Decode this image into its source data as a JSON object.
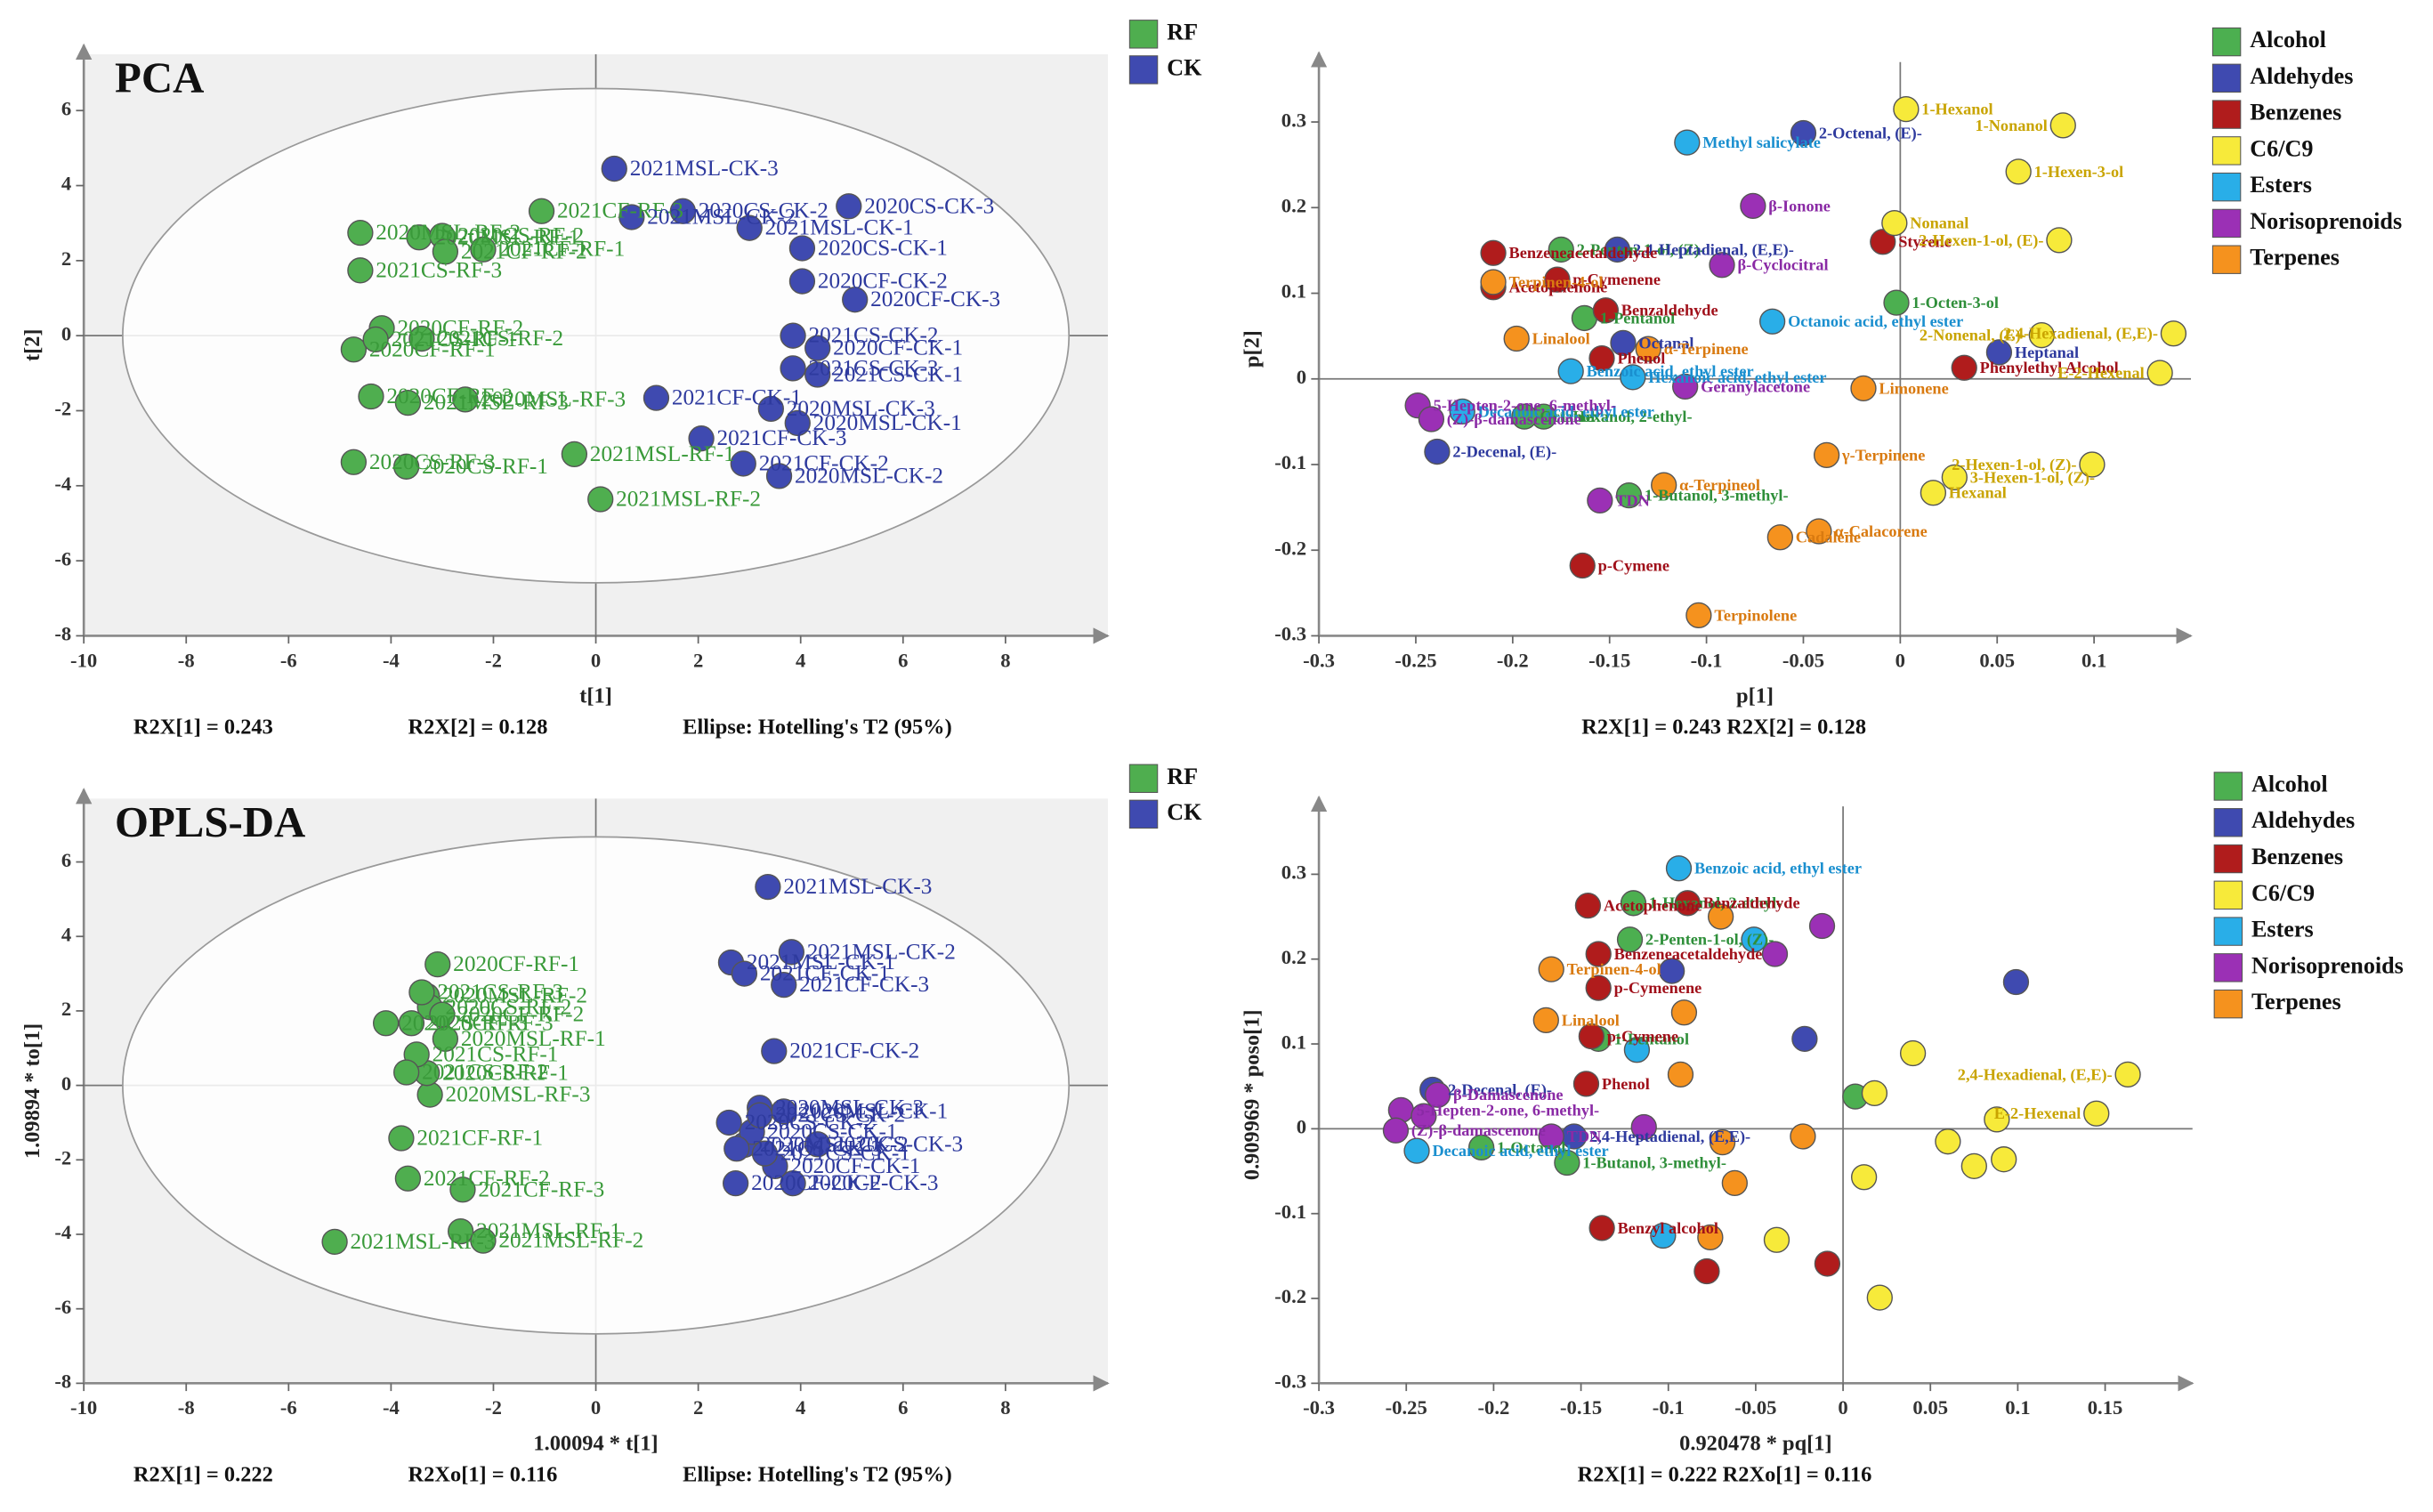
{
  "chart_data": [
    {
      "type": "scatter",
      "title": "PCA",
      "xlabel": "t[1]",
      "ylabel": "t[2]",
      "annotations": [
        "R2X[1] = 0.243",
        "R2X[2] = 0.128",
        "Ellipse: Hotelling's T2 (95%)"
      ],
      "ellipse": true,
      "legend": "outside-right",
      "xlim": [
        -10,
        10
      ],
      "ylim": [
        -8,
        7.5
      ],
      "xticks": [
        -10,
        -8,
        -6,
        -4,
        -2,
        0,
        2,
        4,
        6,
        8
      ],
      "yticks": [
        -8,
        -6,
        -4,
        -2,
        0,
        2,
        4,
        6
      ],
      "series": [
        {
          "name": "RF",
          "color": "#4fae4f",
          "label_color": "#3a9a3a",
          "labels": [
            "2020MSL-RF-1",
            "2020MSL-RF-2",
            "2020MSL-RF-3",
            "2020CS-RF-1",
            "2020CS-RF-2",
            "2020CS-RF-3",
            "2020CF-RF-1",
            "2020CF-RF-2",
            "2020CF-RF-3",
            "2021MSL-RF-1",
            "2021MSL-RF-2",
            "2021MSL-RF-3",
            "2021CS-RF-1",
            "2021CS-RF-2",
            "2021CS-RF-3",
            "2021CF-RF-1",
            "2021CF-RF-2",
            "2021CF-RF-3"
          ],
          "x": [
            -3.45,
            -4.6,
            -2.55,
            -3.7,
            -3.0,
            -4.73,
            -4.73,
            -4.18,
            -4.39,
            -0.42,
            0.09,
            -3.67,
            -4.3,
            -3.4,
            -4.6,
            -2.2,
            -2.94,
            -1.06
          ],
          "y": [
            2.62,
            2.74,
            -1.7,
            -3.49,
            2.66,
            -3.37,
            -0.37,
            0.2,
            -1.62,
            -3.16,
            -4.36,
            -1.79,
            -0.1,
            -0.08,
            1.74,
            2.3,
            2.24,
            3.32
          ]
        },
        {
          "name": "CK",
          "color": "#3f4ab0",
          "label_color": "#2e3a9e",
          "labels": [
            "2020MSL-CK-1",
            "2020MSL-CK-2",
            "2020MSL-CK-3",
            "2020CS-CK-1",
            "2020CS-CK-2",
            "2020CS-CK-3",
            "2020CF-CK-1",
            "2020CF-CK-2",
            "2020CF-CK-3",
            "2021MSL-CK-1",
            "2021MSL-CK-2",
            "2021MSL-CK-3",
            "2021CS-CK-1",
            "2021CS-CK-2",
            "2021CS-CK-3",
            "2021CF-CK-1",
            "2021CF-CK-2",
            "2021CF-CK-3"
          ],
          "x": [
            3.94,
            3.58,
            3.42,
            4.03,
            1.7,
            4.94,
            4.33,
            4.03,
            5.06,
            3.0,
            0.7,
            0.36,
            4.33,
            3.85,
            3.85,
            1.18,
            2.88,
            2.06
          ],
          "y": [
            -2.33,
            -3.74,
            -1.95,
            2.33,
            3.32,
            3.45,
            -0.33,
            1.45,
            0.96,
            2.87,
            3.16,
            4.45,
            -1.04,
            0,
            -0.87,
            -1.66,
            -3.41,
            -2.74
          ]
        }
      ]
    },
    {
      "type": "scatter",
      "xlabel": "p[1]",
      "ylabel": "p[2]",
      "annotations": [
        "R2X[1] = 0.243 R2X[2] = 0.128"
      ],
      "ellipse": false,
      "legend": "outside-right",
      "xlim": [
        -0.3,
        0.15
      ],
      "ylim": [
        -0.3,
        0.37
      ],
      "xticks": [
        -0.3,
        -0.25,
        -0.2,
        -0.15,
        -0.1,
        -0.05,
        0,
        0.05,
        0.1
      ],
      "yticks": [
        -0.3,
        -0.2,
        -0.1,
        0,
        0.1,
        0.2,
        0.3
      ],
      "series": [
        {
          "name": "Alcohol",
          "color": "#4caf50",
          "label_color": "#2f8f3a",
          "labels": [
            "2-Penten-1-ol, (Z)-",
            "1-Pentanol",
            "1-Octen-3-ol",
            "1-Butanol, 3-methyl-",
            "1-Hexanol, 2-ethyl-",
            "Octanol"
          ],
          "x": [
            -0.175,
            -0.163,
            -0.002,
            -0.14,
            -0.184,
            -0.194
          ],
          "y": [
            0.151,
            0.071,
            0.089,
            -0.136,
            -0.044,
            -0.044
          ]
        },
        {
          "name": "Aldehydes",
          "color": "#3f4ab0",
          "label_color": "#2e3a9e",
          "labels": [
            "2-Octenal, (E)-",
            "2,4-Heptadienal, (E,E)-",
            "Octanal",
            "Heptanal",
            "2-Decenal, (E)-"
          ],
          "x": [
            -0.05,
            -0.146,
            -0.143,
            0.051,
            -0.239
          ],
          "y": [
            0.287,
            0.151,
            0.042,
            0.031,
            -0.085
          ]
        },
        {
          "name": "Benzenes",
          "color": "#b01c1c",
          "label_color": "#a0101a",
          "labels": [
            "Benzeneacetaldehyde",
            "Acetophenone",
            "p-Cymenene",
            "Benzaldehyde",
            "Styrene",
            "Phenol",
            "Phenylethyl Alcohol",
            "p-Cymene"
          ],
          "x": [
            -0.21,
            -0.21,
            -0.177,
            -0.152,
            -0.009,
            -0.154,
            0.033,
            -0.164
          ],
          "y": [
            0.147,
            0.107,
            0.116,
            0.08,
            0.16,
            0.024,
            0.013,
            -0.218
          ]
        },
        {
          "name": "C6/C9",
          "color": "#f7ea3a",
          "label_color": "#c9a400",
          "labels": [
            "1-Hexanol",
            "1-Nonanol",
            "1-Hexen-3-ol",
            "Nonanal",
            "2-Hexen-1-ol, (E)-",
            "2-Nonenal, (E)-",
            "2,4-Hexadienal, (E,E)-",
            "E-2-Hexenal",
            "2-Hexen-1-ol, (Z)-",
            "3-Hexen-1-ol, (Z)-",
            "Hexanal"
          ],
          "x": [
            0.003,
            0.084,
            0.061,
            -0.003,
            0.082,
            0.073,
            0.141,
            0.134,
            0.099,
            0.028,
            0.017
          ],
          "y": [
            0.315,
            0.296,
            0.242,
            0.182,
            0.162,
            0.051,
            0.053,
            0.007,
            -0.1,
            -0.115,
            -0.133
          ]
        },
        {
          "name": "Esters",
          "color": "#29aee8",
          "label_color": "#1a8fcf",
          "labels": [
            "Methyl salicylate",
            "Octanoic acid, ethyl ester",
            "Benzoic acid, ethyl ester",
            "Decanoic acid, ethyl ester",
            "Hexanoic acid, ethyl ester"
          ],
          "x": [
            -0.11,
            -0.066,
            -0.17,
            -0.226,
            -0.138
          ],
          "y": [
            0.276,
            0.067,
            0.009,
            -0.038,
            0.002
          ]
        },
        {
          "name": "Norisoprenoids",
          "color": "#9b30b5",
          "label_color": "#8a2aa5",
          "labels": [
            "β-Ionone",
            "β-Cyclocitral",
            "Geranylacetone",
            "5-Hepten-2-one, 6-methyl-",
            "(Z)-β-damascenone",
            "TDN"
          ],
          "x": [
            -0.076,
            -0.092,
            -0.111,
            -0.249,
            -0.242,
            -0.155
          ],
          "y": [
            0.202,
            0.133,
            -0.009,
            -0.031,
            -0.047,
            -0.142
          ]
        },
        {
          "name": "Terpenes",
          "color": "#f5921e",
          "label_color": "#d97a10",
          "labels": [
            "Terpinen-4-ol",
            "Linalool",
            "α-Terpinene",
            "Limonene",
            "α-Terpineol",
            "γ-Terpinene",
            "Cadalene",
            "α-Calacorene",
            "Terpinolene"
          ],
          "x": [
            -0.21,
            -0.198,
            -0.13,
            -0.019,
            -0.122,
            -0.038,
            -0.062,
            -0.042,
            -0.104
          ],
          "y": [
            0.113,
            0.047,
            0.035,
            -0.011,
            -0.124,
            -0.089,
            -0.185,
            -0.178,
            -0.276
          ]
        }
      ]
    },
    {
      "type": "scatter",
      "title": "OPLS-DA",
      "xlabel": "1.00094 * t[1]",
      "ylabel": "1.09894 * to[1]",
      "annotations": [
        "R2X[1] = 0.222",
        "R2Xo[1] = 0.116",
        "Ellipse: Hotelling's T2 (95%)"
      ],
      "ellipse": true,
      "legend": "outside-right",
      "xlim": [
        -10,
        10
      ],
      "ylim": [
        -8,
        7.7
      ],
      "xticks": [
        -10,
        -8,
        -6,
        -4,
        -2,
        0,
        2,
        4,
        6,
        8
      ],
      "yticks": [
        -8,
        -6,
        -4,
        -2,
        0,
        2,
        4,
        6
      ],
      "series": [
        {
          "name": "RF",
          "color": "#4fae4f",
          "label_color": "#3a9a3a",
          "labels": [
            "2020MSL-RF-1",
            "2020MSL-RF-2",
            "2020MSL-RF-3",
            "2020CS-RF-1",
            "2020CS-RF-2",
            "2020CS-RF-3",
            "2020CF-RF-1",
            "2020CF-RF-2",
            "2020CF-RF-3",
            "2021MSL-RF-1",
            "2021MSL-RF-2",
            "2021MSL-RF-3",
            "2021CS-RF-1",
            "2021CS-RF-2",
            "2021CS-RF-3",
            "2021CF-RF-1",
            "2021CF-RF-2",
            "2021CF-RF-3"
          ],
          "x": [
            -2.94,
            -3.3,
            -3.24,
            -3.3,
            -3.24,
            -4.1,
            -3.09,
            -3.0,
            -3.6,
            -2.64,
            -2.2,
            -5.1,
            -3.5,
            -3.7,
            -3.4,
            -3.8,
            -3.67,
            -2.6
          ],
          "y": [
            1.25,
            2.4,
            -0.25,
            0.33,
            2.1,
            1.67,
            3.25,
            1.9,
            1.67,
            -3.92,
            -4.17,
            -4.2,
            0.83,
            0.35,
            2.5,
            -1.42,
            -2.5,
            -2.8
          ]
        },
        {
          "name": "CK",
          "color": "#3f4ab0",
          "label_color": "#2e3a9e",
          "labels": [
            "2020MSL-CK-1",
            "2020MSL-CK-2",
            "2020MSL-CK-3",
            "2020CS-CK-1",
            "2020CS-CK-2",
            "2020CS-CK-3",
            "2020CF-CK-1",
            "2020CF-CK-2",
            "2020CF-CK-3",
            "2021MSL-CK-1",
            "2021MSL-CK-2",
            "2021MSL-CK-3",
            "2021CS-CK-1",
            "2021CS-CK-2",
            "2021CS-CK-3",
            "2021CF-CK-1",
            "2021CF-CK-2",
            "2021CF-CK-3"
          ],
          "x": [
            3.67,
            2.9,
            3.2,
            3.05,
            2.6,
            4.33,
            3.5,
            2.73,
            3.85,
            2.64,
            3.82,
            3.36,
            3.3,
            3.2,
            2.75,
            2.9,
            3.48,
            3.67
          ],
          "y": [
            -0.7,
            -1.6,
            -0.6,
            -1.25,
            -1.0,
            -1.58,
            -2.17,
            -2.63,
            -2.63,
            3.3,
            3.58,
            5.33,
            -1.83,
            -0.8,
            -1.7,
            3.0,
            0.92,
            2.7
          ]
        }
      ]
    },
    {
      "type": "scatter",
      "xlabel": "0.920478 * pq[1]",
      "ylabel": "0.909969 * poso[1]",
      "annotations": [
        "R2X[1] = 0.222  R2Xo[1] = 0.116"
      ],
      "ellipse": false,
      "legend": "outside-right",
      "xlim": [
        -0.3,
        0.2
      ],
      "ylim": [
        -0.3,
        0.38
      ],
      "xticks": [
        -0.3,
        -0.25,
        -0.2,
        -0.15,
        -0.1,
        -0.05,
        0,
        0.05,
        0.1,
        0.15
      ],
      "yticks": [
        -0.3,
        -0.2,
        -0.1,
        0,
        0.1,
        0.2,
        0.3
      ],
      "series": [
        {
          "name": "Alcohol",
          "color": "#4caf50",
          "label_color": "#2f8f3a",
          "labels": [
            "1-Hexanol, 2-ethyl-",
            "2-Penten-1-ol, (Z)-",
            "1-Pentanol",
            null,
            "1-Octanol",
            "1-Butanol, 3-methyl-"
          ],
          "x": [
            -0.12,
            -0.122,
            -0.14,
            0.007,
            -0.207,
            -0.158
          ],
          "y": [
            0.266,
            0.223,
            0.106,
            0.038,
            -0.022,
            -0.04
          ]
        },
        {
          "name": "Aldehydes",
          "color": "#3f4ab0",
          "label_color": "#2e3a9e",
          "labels": [
            null,
            null,
            null,
            "2-Decenal, (E)-",
            "2,4-Heptadienal, (E,E)-"
          ],
          "x": [
            0.099,
            -0.098,
            -0.022,
            -0.235,
            -0.154
          ],
          "y": [
            0.173,
            0.186,
            0.106,
            0.046,
            -0.009
          ]
        },
        {
          "name": "Benzenes",
          "color": "#b01c1c",
          "label_color": "#a0101a",
          "labels": [
            "Acetophenone",
            "Benzaldehyde",
            "Benzeneacetaldehyde",
            "p-Cymenene",
            "p-Cymene",
            "Phenol",
            "Benzyl alcohol",
            null,
            null
          ],
          "x": [
            -0.146,
            -0.089,
            -0.14,
            -0.14,
            -0.144,
            -0.147,
            -0.138,
            -0.078,
            -0.009
          ],
          "y": [
            0.263,
            0.266,
            0.206,
            0.166,
            0.109,
            0.053,
            -0.117,
            -0.168,
            -0.159
          ]
        },
        {
          "name": "C6/C9",
          "color": "#f7ea3a",
          "label_color": "#c9a400",
          "labels": [
            "2,4-Hexadienal, (E,E)-",
            "E-2-Hexenal",
            null,
            null,
            null,
            null,
            null,
            null,
            null,
            null,
            null
          ],
          "x": [
            0.163,
            0.145,
            0.04,
            0.018,
            0.088,
            0.06,
            0.075,
            0.092,
            0.012,
            -0.038,
            0.021
          ],
          "y": [
            0.064,
            0.018,
            0.089,
            0.042,
            0.011,
            -0.015,
            -0.044,
            -0.036,
            -0.057,
            -0.131,
            -0.199
          ]
        },
        {
          "name": "Esters",
          "color": "#29aee8",
          "label_color": "#1a8fcf",
          "labels": [
            "Benzoic acid, ethyl ester",
            null,
            null,
            "Decanoic acid, ethyl ester",
            null
          ],
          "x": [
            -0.094,
            -0.051,
            -0.118,
            -0.244,
            -0.103
          ],
          "y": [
            0.307,
            0.223,
            0.093,
            -0.026,
            -0.126
          ]
        },
        {
          "name": "Norisoprenoids",
          "color": "#9b30b5",
          "label_color": "#8a2aa5",
          "labels": [
            null,
            null,
            "5-Hepten-2-one, 6-methyl-",
            null,
            "β-Damascenone",
            "(Z)-β-damascenone",
            "TDN",
            null
          ],
          "x": [
            -0.012,
            -0.039,
            -0.253,
            -0.24,
            -0.232,
            -0.256,
            -0.167,
            -0.114
          ],
          "y": [
            0.239,
            0.206,
            0.022,
            0.015,
            0.04,
            -0.002,
            -0.009,
            0.002
          ]
        },
        {
          "name": "Terpenes",
          "color": "#f5921e",
          "label_color": "#d97a10",
          "labels": [
            null,
            null,
            null,
            "Linalool",
            "Terpinen-4-ol",
            null,
            null,
            null,
            null
          ],
          "x": [
            -0.07,
            -0.091,
            -0.093,
            -0.17,
            -0.167,
            -0.023,
            -0.069,
            -0.062,
            -0.076
          ],
          "y": [
            0.25,
            0.137,
            0.064,
            0.128,
            0.188,
            -0.009,
            -0.016,
            -0.064,
            -0.128
          ]
        }
      ]
    }
  ]
}
